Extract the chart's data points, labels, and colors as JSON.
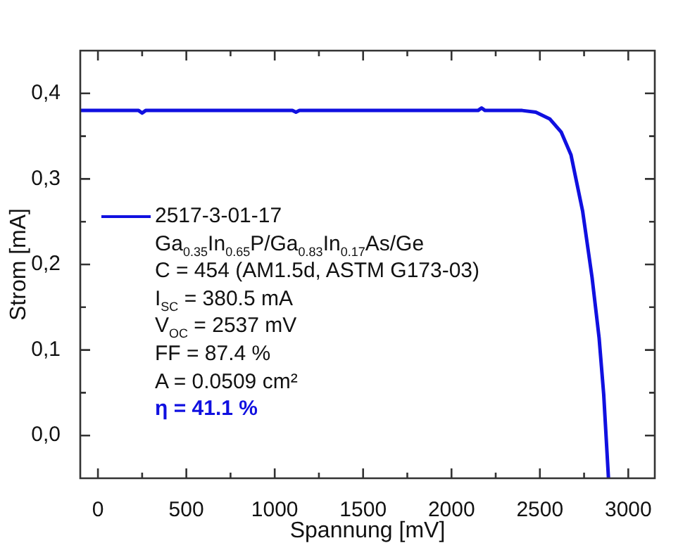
{
  "chart_data": {
    "type": "line",
    "xlabel": "Spannung [mV]",
    "ylabel": "Strom [mA]",
    "x": [
      -100,
      100,
      230,
      250,
      270,
      500,
      800,
      1100,
      1120,
      1140,
      1500,
      1800,
      2150,
      2170,
      2190,
      2400,
      2477,
      2557,
      2620,
      2676,
      2742,
      2795,
      2835,
      2861,
      2888
    ],
    "series": [
      {
        "name": "2517-3-01-17",
        "color": "#1010e0",
        "values": [
          0.38,
          0.38,
          0.38,
          0.377,
          0.38,
          0.38,
          0.38,
          0.38,
          0.378,
          0.38,
          0.38,
          0.38,
          0.38,
          0.383,
          0.38,
          0.38,
          0.378,
          0.37,
          0.355,
          0.328,
          0.262,
          0.185,
          0.114,
          0.048,
          -0.05
        ]
      }
    ],
    "xlim": [
      -100,
      3150
    ],
    "ylim": [
      -0.05,
      0.45
    ],
    "xticks": [
      0,
      {
        "value": 250,
        "label": null
      },
      500,
      {
        "value": 750,
        "label": null
      },
      1000,
      {
        "value": 1250,
        "label": null
      },
      1500,
      {
        "value": 1750,
        "label": null
      },
      2000,
      {
        "value": 2250,
        "label": null
      },
      2500,
      {
        "value": 2750,
        "label": null
      },
      3000
    ],
    "yticks": [
      {
        "value": 0,
        "label": "0,0"
      },
      {
        "value": 0.05,
        "label": null
      },
      {
        "value": 0.1,
        "label": "0,1"
      },
      {
        "value": 0.15,
        "label": null
      },
      {
        "value": 0.2,
        "label": "0,2"
      },
      {
        "value": 0.25,
        "label": null
      },
      {
        "value": 0.3,
        "label": "0,3"
      },
      {
        "value": 0.35,
        "label": null
      },
      {
        "value": 0.4,
        "label": "0,4"
      }
    ],
    "legend": "left",
    "grid": false,
    "marker": "none",
    "line_style": "solid",
    "annotations": [
      "Ga$_{0.35}$In$_{0.65}$P/Ga$_{0.83}$In$_{0.17}$As/Ge",
      "C = 454 (AM1.5d, ASTM G173-03)",
      "I$_{SC}$ = 380.5 mA",
      "V$_{OC}$ = 2537 mV",
      "FF = 87.4 %",
      "A = 0.0509 cm²",
      "η = 41.1 %"
    ]
  }
}
